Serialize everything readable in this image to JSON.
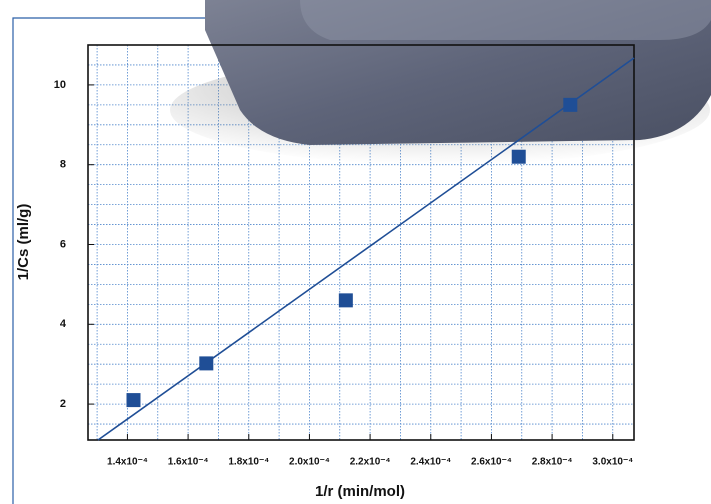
{
  "chart_data": {
    "type": "scatter",
    "x_label": "1/r (min/mol)",
    "y_label": "1/Cs (ml/g)",
    "x": [
      0.000142,
      0.000166,
      0.000212,
      0.000269,
      0.000286
    ],
    "values": [
      2.1,
      3.02,
      4.6,
      8.2,
      9.5
    ],
    "color": "#1f4e96",
    "fit_line": {
      "x": [
        0.0001303,
        0.000307
      ],
      "y": [
        1.1,
        10.675
      ],
      "color": "#1f4e96"
    },
    "xlim": [
      0.000127,
      0.000307
    ],
    "ylim": [
      1.1,
      11
    ],
    "xticks": [
      {
        "value": 0.00014,
        "label": "1.4x10⁻⁴"
      },
      {
        "value": 0.00016,
        "label": "1.6x10⁻⁴"
      },
      {
        "value": 0.00018,
        "label": "1.8x10⁻⁴"
      },
      {
        "value": 0.0002,
        "label": "2.0x10⁻⁴"
      },
      {
        "value": 0.00022,
        "label": "2.2x10⁻⁴"
      },
      {
        "value": 0.00024,
        "label": "2.4x10⁻⁴"
      },
      {
        "value": 0.00026,
        "label": "2.6x10⁻⁴"
      },
      {
        "value": 0.00028,
        "label": "2.8x10⁻⁴"
      },
      {
        "value": 0.0003,
        "label": "3.0x10⁻⁴"
      }
    ],
    "yticks": [
      2,
      4,
      6,
      8,
      10
    ],
    "grid": true
  }
}
